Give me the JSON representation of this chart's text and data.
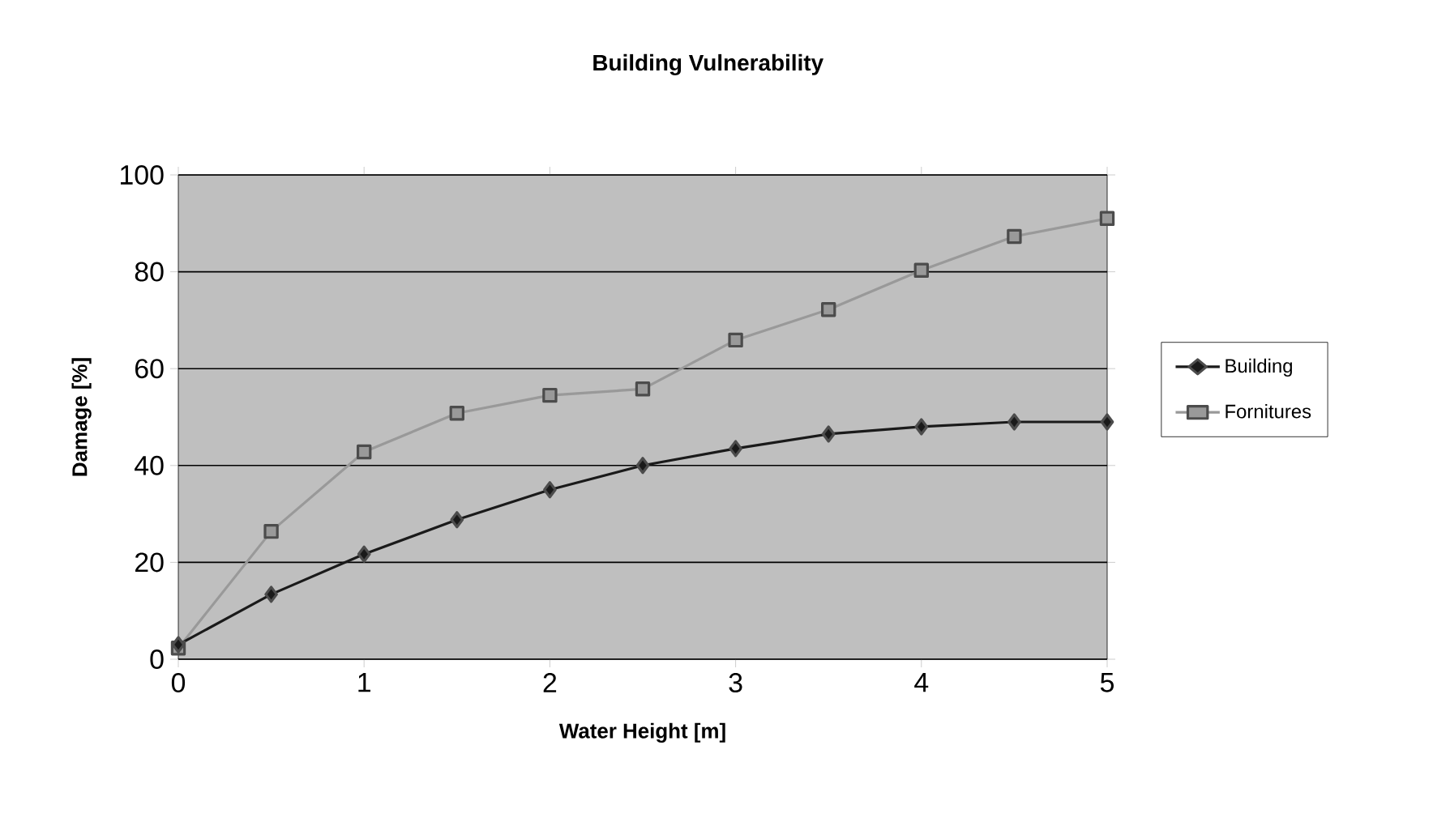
{
  "chart_data": {
    "type": "line",
    "title": "Building Vulnerability",
    "xlabel": "Water Height [m]",
    "ylabel": "Damage  [%]",
    "x": [
      0,
      0.5,
      1,
      1.5,
      2,
      2.5,
      3,
      3.5,
      4,
      4.5,
      5
    ],
    "series": [
      {
        "name": "Building",
        "color": "#1a1a1a",
        "marker": "diamond",
        "values": [
          3,
          13.4,
          21.7,
          28.8,
          35,
          40,
          43.5,
          46.5,
          48,
          49,
          49
        ]
      },
      {
        "name": "Fornitures",
        "color": "#999999",
        "marker": "square",
        "values": [
          2.3,
          26.4,
          42.8,
          50.8,
          54.5,
          55.8,
          65.9,
          72.2,
          80.3,
          87.3,
          91
        ]
      }
    ],
    "xlim": [
      0,
      5
    ],
    "ylim": [
      0,
      100
    ],
    "xticks": [
      0,
      1,
      2,
      3,
      4,
      5
    ],
    "yticks": [
      0,
      20,
      40,
      60,
      80,
      100
    ],
    "grid": "y",
    "legend": "right",
    "line_style": "solid"
  }
}
